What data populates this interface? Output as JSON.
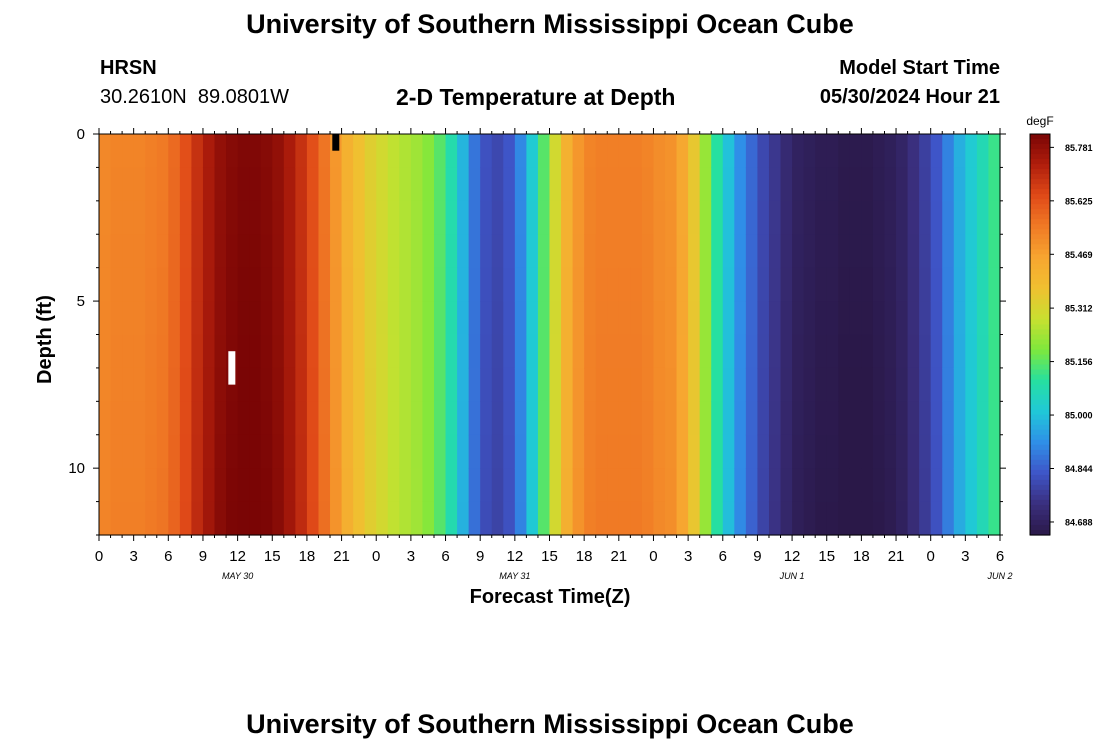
{
  "page": {
    "title": "University of Southern Mississippi Ocean Cube",
    "footer_title": "University of Southern Mississippi Ocean Cube",
    "station": {
      "name": "HRSN",
      "coords": "30.2610N  89.0801W"
    },
    "model_start": {
      "label": "Model Start Time",
      "value": "05/30/2024 Hour 21"
    }
  },
  "chart_data": {
    "type": "heatmap",
    "title": "2-D Temperature at Depth",
    "xlabel": "Forecast Time(Z)",
    "ylabel": "Depth (ft)",
    "colorbar_label": "degF",
    "x_tick_labels": [
      "0",
      "3",
      "6",
      "9",
      "12",
      "15",
      "18",
      "21",
      "0",
      "3",
      "6",
      "9",
      "12",
      "15",
      "18",
      "21",
      "0",
      "3",
      "6",
      "9",
      "12",
      "15",
      "18",
      "21",
      "0",
      "3",
      "6"
    ],
    "date_labels": [
      {
        "label": "MAY 30",
        "hour_index": 12
      },
      {
        "label": "MAY 31",
        "hour_index": 36
      },
      {
        "label": "JUN 1",
        "hour_index": 60
      },
      {
        "label": "JUN 2",
        "hour_index": 78
      }
    ],
    "x_range_hours": [
      0,
      78
    ],
    "y_ticks": [
      0,
      5,
      10
    ],
    "y_range_ft": [
      0,
      12
    ],
    "colorbar_ticks": [
      "85.781",
      "85.625",
      "85.469",
      "85.312",
      "85.156",
      "85.000",
      "84.844",
      "84.688"
    ],
    "colorbar_range": [
      84.65,
      85.82
    ],
    "colormap": [
      "#2a1848",
      "#3a2f7e",
      "#3e55c8",
      "#2f8fe8",
      "#20c8d8",
      "#26e0a0",
      "#7ee83c",
      "#c8e030",
      "#f0c030",
      "#f7a530",
      "#f07a25",
      "#e04a18",
      "#b01e0c",
      "#7a0505"
    ],
    "time_series_hourly_surface_degF": [
      85.52,
      85.53,
      85.53,
      85.53,
      85.54,
      85.55,
      85.58,
      85.63,
      85.69,
      85.74,
      85.78,
      85.8,
      85.81,
      85.81,
      85.8,
      85.78,
      85.74,
      85.69,
      85.63,
      85.56,
      85.49,
      85.42,
      85.37,
      85.33,
      85.3,
      85.27,
      85.25,
      85.23,
      85.2,
      85.15,
      85.08,
      84.98,
      84.88,
      84.82,
      84.8,
      84.83,
      84.91,
      85.02,
      85.15,
      85.3,
      85.42,
      85.49,
      85.53,
      85.54,
      85.54,
      85.54,
      85.54,
      85.53,
      85.51,
      85.5,
      85.45,
      85.35,
      85.22,
      85.1,
      85.0,
      84.92,
      84.86,
      84.8,
      84.76,
      84.72,
      84.69,
      84.68,
      84.67,
      84.67,
      84.66,
      84.66,
      84.66,
      84.67,
      84.68,
      84.7,
      84.74,
      84.78,
      84.83,
      84.9,
      84.97,
      85.02,
      85.07,
      85.12,
      85.16
    ],
    "annotations": [
      {
        "type": "marker",
        "color": "#ffffff",
        "hour": 11.5,
        "depth_ft": [
          6.5,
          7.5
        ]
      },
      {
        "type": "marker",
        "color": "#000000",
        "hour": 20.5,
        "depth_ft": [
          0,
          0.5
        ]
      }
    ],
    "grid": false
  }
}
